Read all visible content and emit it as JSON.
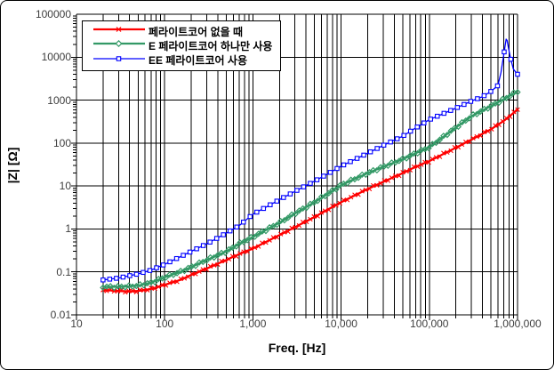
{
  "chart_data": {
    "type": "line",
    "title": "",
    "xlabel": "Freq. [Hz]",
    "ylabel": "|Z| [Ω]",
    "x_scale": "log",
    "y_scale": "log",
    "xlim": [
      10,
      1000000
    ],
    "ylim": [
      0.01,
      100000
    ],
    "x_ticks": [
      "10",
      "100",
      "1,000",
      "10,000",
      "100,000",
      "1,000,000"
    ],
    "y_ticks": [
      "100000",
      "10000",
      "1000",
      "100",
      "10",
      "1",
      "0.1",
      "0.01"
    ],
    "grid": {
      "x_major": true,
      "x_minor": true,
      "y_major": true,
      "y_minor": false
    },
    "legend_position": "top-left-inside",
    "series": [
      {
        "name": "페라이트코어 없을 때",
        "color": "#ff0000",
        "marker": "x",
        "points": [
          [
            20,
            0.038
          ],
          [
            30,
            0.036
          ],
          [
            40,
            0.035
          ],
          [
            50,
            0.036
          ],
          [
            70,
            0.04
          ],
          [
            100,
            0.05
          ],
          [
            150,
            0.065
          ],
          [
            200,
            0.085
          ],
          [
            300,
            0.12
          ],
          [
            500,
            0.19
          ],
          [
            700,
            0.26
          ],
          [
            1000,
            0.35
          ],
          [
            2000,
            0.72
          ],
          [
            3000,
            1.1
          ],
          [
            5000,
            1.9
          ],
          [
            7000,
            2.8
          ],
          [
            10000,
            4.2
          ],
          [
            20000,
            8.5
          ],
          [
            30000,
            12.5
          ],
          [
            50000,
            20
          ],
          [
            70000,
            28
          ],
          [
            100000,
            38
          ],
          [
            200000,
            78
          ],
          [
            300000,
            120
          ],
          [
            500000,
            210
          ],
          [
            700000,
            330
          ],
          [
            1000000,
            600
          ]
        ]
      },
      {
        "name": "E 페라이트코어 하나만 사용",
        "color": "#339966",
        "marker": "diamond",
        "points": [
          [
            20,
            0.045
          ],
          [
            30,
            0.045
          ],
          [
            40,
            0.046
          ],
          [
            50,
            0.048
          ],
          [
            70,
            0.056
          ],
          [
            100,
            0.075
          ],
          [
            150,
            0.1
          ],
          [
            200,
            0.13
          ],
          [
            300,
            0.19
          ],
          [
            500,
            0.3
          ],
          [
            700,
            0.45
          ],
          [
            1000,
            0.65
          ],
          [
            2000,
            1.4
          ],
          [
            3000,
            2.3
          ],
          [
            5000,
            4.2
          ],
          [
            7000,
            6.5
          ],
          [
            10000,
            10.5
          ],
          [
            20000,
            20
          ],
          [
            30000,
            28
          ],
          [
            50000,
            42
          ],
          [
            70000,
            58
          ],
          [
            100000,
            80
          ],
          [
            200000,
            230
          ],
          [
            300000,
            420
          ],
          [
            500000,
            730
          ],
          [
            700000,
            1050
          ],
          [
            1000000,
            1600
          ]
        ]
      },
      {
        "name": "EE 페라이트코어 사용",
        "color": "#0000ff",
        "marker": "square",
        "points": [
          [
            20,
            0.065
          ],
          [
            30,
            0.072
          ],
          [
            50,
            0.09
          ],
          [
            70,
            0.11
          ],
          [
            100,
            0.15
          ],
          [
            200,
            0.3
          ],
          [
            300,
            0.45
          ],
          [
            500,
            0.8
          ],
          [
            700,
            1.2
          ],
          [
            1000,
            2.2
          ],
          [
            2000,
            4.8
          ],
          [
            3000,
            7.5
          ],
          [
            5000,
            13
          ],
          [
            7000,
            19
          ],
          [
            10000,
            29
          ],
          [
            20000,
            58
          ],
          [
            30000,
            88
          ],
          [
            50000,
            145
          ],
          [
            70000,
            225
          ],
          [
            100000,
            350
          ],
          [
            200000,
            650
          ],
          [
            300000,
            950
          ],
          [
            400000,
            1200
          ],
          [
            500000,
            1600
          ],
          [
            600000,
            2200
          ],
          [
            650000,
            4500
          ],
          [
            700000,
            12000
          ],
          [
            750000,
            30000
          ],
          [
            800000,
            14000
          ],
          [
            850000,
            8000
          ],
          [
            900000,
            5200
          ],
          [
            1000000,
            4000
          ]
        ]
      }
    ]
  }
}
